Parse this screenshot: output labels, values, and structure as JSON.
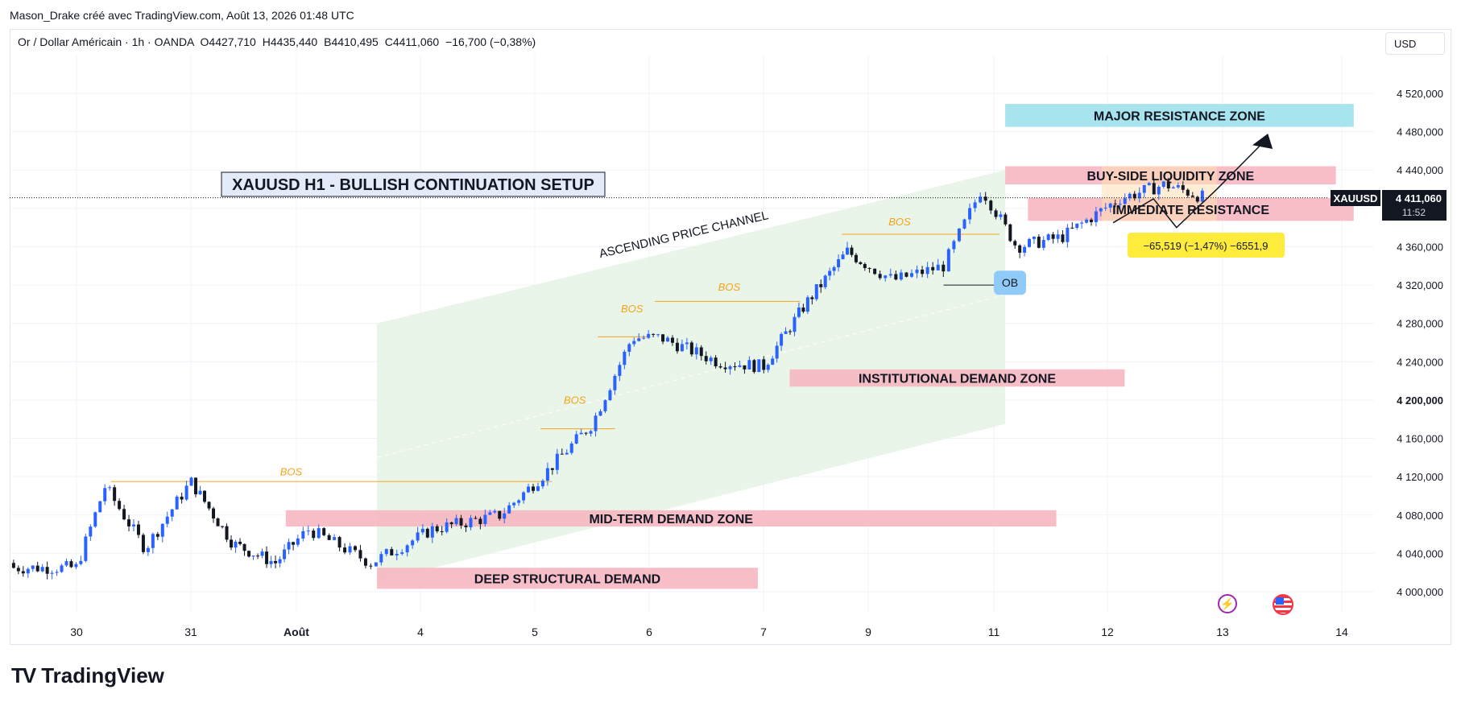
{
  "header": {
    "author_line": "Mason_Drake créé avec TradingView.com, Août 13, 2026 01:48 UTC"
  },
  "legend": {
    "instrument": "Or / Dollar Américain · 1h · OANDA",
    "open": "O4427,710",
    "high": "H4435,440",
    "low": "B4410,495",
    "close": "C4411,060",
    "change": "−16,700 (−0,38%)"
  },
  "currency_button": "USD",
  "brand": {
    "name": "TradingView",
    "logo": "TV"
  },
  "icons": {
    "bolt": "lightning-bolt-icon",
    "flag": "us-flag-icon"
  },
  "colors": {
    "up": "#2962ff",
    "down": "#131722",
    "demand": "#f7b3bd",
    "resistance_major": "#a7e4ee",
    "liquidity": "#f7c6a4",
    "channel": "#e6f4e6",
    "bos": "#f7a21b",
    "label_yellow": "#ffeb3b"
  },
  "chart_data": {
    "type": "candlestick",
    "symbol": "XAUUSD",
    "timeframe": "1h",
    "y_axis": {
      "ticks": [
        "4 000,000",
        "4 040,000",
        "4 080,000",
        "4 120,000",
        "4 160,000",
        "4 200,000",
        "4 240,000",
        "4 280,000",
        "4 320,000",
        "4 360,000",
        "4 400,000",
        "4 440,000",
        "4 480,000",
        "4 520,000"
      ],
      "tick_values": [
        4000,
        4040,
        4080,
        4120,
        4160,
        4200,
        4240,
        4280,
        4320,
        4360,
        4400,
        4440,
        4480,
        4520
      ],
      "ylim": [
        3975,
        4555
      ]
    },
    "x_axis": {
      "ticks": [
        "30",
        "31",
        "Août",
        "4",
        "5",
        "6",
        "7",
        "9",
        "11",
        "12",
        "13",
        "14"
      ],
      "tick_days": [
        0,
        1,
        2,
        3,
        4,
        5,
        6,
        7,
        8,
        9,
        10,
        11
      ]
    },
    "price_tag": {
      "symbol": "XAUUSD",
      "price": "4 411,060",
      "countdown": "11:52",
      "value": 4411.06
    },
    "title_box": "XAUUSD H1 - BULLISH CONTINUATION SETUP",
    "channel_label": "ASCENDING PRICE CHANNEL",
    "zones": [
      {
        "label": "MAJOR RESISTANCE ZONE",
        "top": 4509,
        "bottom": 4485,
        "day_start": 8.1,
        "day_end": 11.1,
        "kind": "major"
      },
      {
        "label": "BUY-SIDE LIQUIDITY ZONE",
        "top": 4444,
        "bottom": 4425,
        "day_start": 8.1,
        "day_end": 10.95,
        "kind": "demand"
      },
      {
        "label": "IMMEDIATE RESISTANCE",
        "top": 4411,
        "bottom": 4387,
        "day_start": 8.3,
        "day_end": 11.1,
        "kind": "demand"
      },
      {
        "label": "INSTITUTIONAL DEMAND ZONE",
        "top": 4232,
        "bottom": 4214,
        "day_start": 6.25,
        "day_end": 9.15,
        "kind": "demand"
      },
      {
        "label": "MID-TERM DEMAND ZONE",
        "top": 4085,
        "bottom": 4068,
        "day_start": 1.9,
        "day_end": 8.55,
        "kind": "demand"
      },
      {
        "label": "DEEP STRUCTURAL DEMAND",
        "top": 4025,
        "bottom": 4003,
        "day_start": 2.65,
        "day_end": 5.95,
        "kind": "demand"
      }
    ],
    "bos_labels": [
      {
        "label": "BOS",
        "day": 1.95,
        "price": 4118
      },
      {
        "label": "BOS",
        "day": 4.35,
        "price": 4193
      },
      {
        "label": "BOS",
        "day": 4.85,
        "price": 4288
      },
      {
        "label": "BOS",
        "day": 5.7,
        "price": 4311
      },
      {
        "label": "BOS",
        "day": 7.25,
        "price": 4379
      }
    ],
    "ob_label": "OB",
    "measure_label": "−65,519 (−1,47%) −6551,9",
    "candles_sample": [
      {
        "t": 0.0,
        "o": 4030,
        "h": 4040,
        "l": 4010,
        "c": 4025
      },
      {
        "t": 0.25,
        "o": 4040,
        "h": 4115,
        "l": 4035,
        "c": 4110
      },
      {
        "t": 0.6,
        "o": 4100,
        "h": 4110,
        "l": 4030,
        "c": 4045
      },
      {
        "t": 1.0,
        "o": 4080,
        "h": 4120,
        "l": 4075,
        "c": 4115
      },
      {
        "t": 1.4,
        "o": 4090,
        "h": 4095,
        "l": 4040,
        "c": 4050
      },
      {
        "t": 1.8,
        "o": 4060,
        "h": 4075,
        "l": 4020,
        "c": 4030
      },
      {
        "t": 2.1,
        "o": 4070,
        "h": 4080,
        "l": 4060,
        "c": 4065
      },
      {
        "t": 2.6,
        "o": 4040,
        "h": 4050,
        "l": 4015,
        "c": 4030
      },
      {
        "t": 3.1,
        "o": 4050,
        "h": 4070,
        "l": 4045,
        "c": 4065
      },
      {
        "t": 3.7,
        "o": 4075,
        "h": 4085,
        "l": 4070,
        "c": 4080
      },
      {
        "t": 4.1,
        "o": 4090,
        "h": 4130,
        "l": 4085,
        "c": 4125
      },
      {
        "t": 4.5,
        "o": 4160,
        "h": 4180,
        "l": 4150,
        "c": 4175
      },
      {
        "t": 4.85,
        "o": 4250,
        "h": 4270,
        "l": 4240,
        "c": 4265
      },
      {
        "t": 5.1,
        "o": 4290,
        "h": 4300,
        "l": 4250,
        "c": 4265
      },
      {
        "t": 5.6,
        "o": 4255,
        "h": 4270,
        "l": 4225,
        "c": 4240
      },
      {
        "t": 6.0,
        "o": 4245,
        "h": 4255,
        "l": 4225,
        "c": 4235
      },
      {
        "t": 6.4,
        "o": 4290,
        "h": 4305,
        "l": 4280,
        "c": 4300
      },
      {
        "t": 6.8,
        "o": 4360,
        "h": 4375,
        "l": 4345,
        "c": 4355
      },
      {
        "t": 7.2,
        "o": 4340,
        "h": 4350,
        "l": 4315,
        "c": 4325
      },
      {
        "t": 7.6,
        "o": 4350,
        "h": 4360,
        "l": 4330,
        "c": 4340
      },
      {
        "t": 7.9,
        "o": 4400,
        "h": 4430,
        "l": 4395,
        "c": 4420
      },
      {
        "t": 8.2,
        "o": 4395,
        "h": 4400,
        "l": 4355,
        "c": 4360
      },
      {
        "t": 8.6,
        "o": 4375,
        "h": 4380,
        "l": 4360,
        "c": 4370
      },
      {
        "t": 9.1,
        "o": 4400,
        "h": 4420,
        "l": 4390,
        "c": 4410
      },
      {
        "t": 9.5,
        "o": 4410,
        "h": 4435,
        "l": 4400,
        "c": 4425
      },
      {
        "t": 9.85,
        "o": 4427,
        "h": 4435,
        "l": 4410,
        "c": 4411
      }
    ]
  }
}
